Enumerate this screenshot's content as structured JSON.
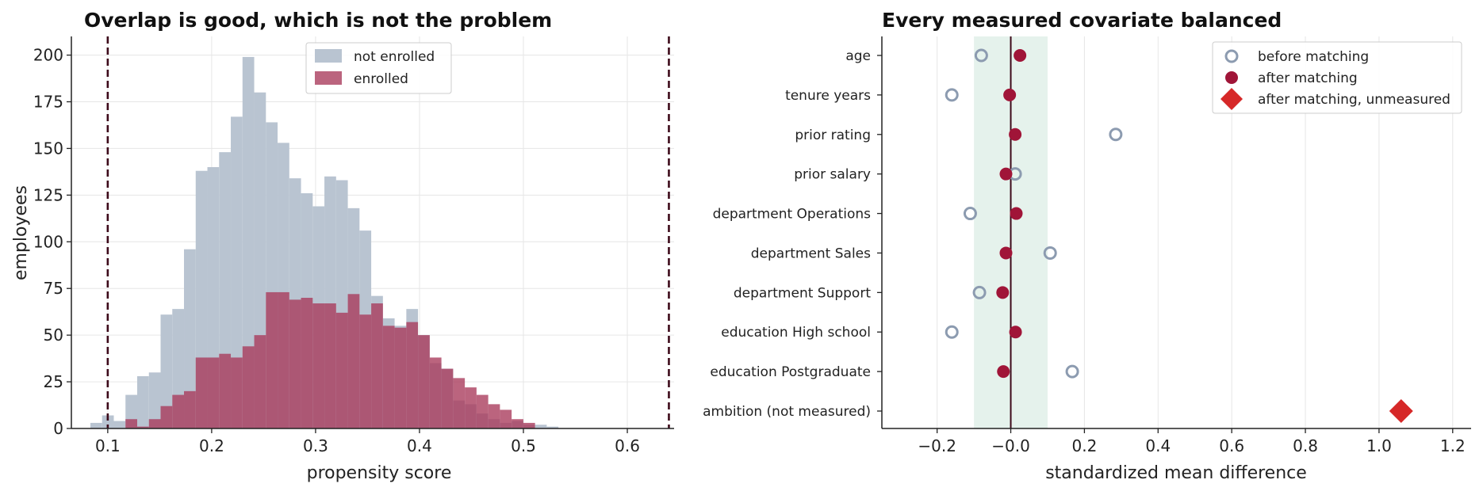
{
  "chart_data": [
    {
      "type": "histogram",
      "title": "Overlap is good, which is not the problem",
      "xlabel": "propensity score",
      "ylabel": "employees",
      "xlim": [
        0.065,
        0.645
      ],
      "ylim": [
        0,
        210
      ],
      "xticks": [
        0.1,
        0.2,
        0.3,
        0.4,
        0.5,
        0.6
      ],
      "yticks": [
        0,
        25,
        50,
        75,
        100,
        125,
        150,
        175,
        200
      ],
      "grid": true,
      "legend_position": "upper center",
      "reference_lines": [
        0.1,
        0.64
      ],
      "bin_start": 0.0833,
      "bin_width": 0.01126,
      "series": [
        {
          "name": "not enrolled",
          "color": "#b9c4d1",
          "values": [
            3,
            7,
            4,
            18,
            28,
            30,
            61,
            64,
            96,
            138,
            140,
            148,
            167,
            199,
            180,
            164,
            153,
            134,
            126,
            119,
            135,
            133,
            118,
            106,
            71,
            59,
            55,
            64,
            50,
            35,
            32,
            15,
            13,
            8,
            5,
            3,
            4,
            2,
            2,
            1
          ]
        },
        {
          "name": "enrolled",
          "color": "#a8385a",
          "values": [
            0,
            0,
            0,
            5,
            1,
            5,
            12,
            18,
            20,
            38,
            38,
            40,
            38,
            44,
            50,
            73,
            73,
            69,
            70,
            67,
            67,
            62,
            72,
            61,
            67,
            55,
            54,
            57,
            50,
            38,
            32,
            27,
            22,
            18,
            13,
            10,
            5,
            3,
            0,
            0
          ]
        }
      ]
    },
    {
      "type": "scatter",
      "title": "Every measured covariate balanced",
      "xlabel": "standardized mean difference",
      "ylabel": "",
      "xlim": [
        -0.35,
        1.25
      ],
      "xticks": [
        -0.2,
        0.0,
        0.2,
        0.4,
        0.6,
        0.8,
        1.0,
        1.2
      ],
      "xtick_labels": [
        "−0.2",
        "−0.0",
        "0.2",
        "0.4",
        "0.6",
        "0.8",
        "1.0",
        "1.2"
      ],
      "grid": true,
      "balance_band": [
        -0.1,
        0.1
      ],
      "legend_position": "upper right",
      "categories": [
        "age",
        "tenure years",
        "prior rating",
        "prior salary",
        "department Operations",
        "department Sales",
        "department Support",
        "education High school",
        "education Postgraduate",
        "ambition (not measured)"
      ],
      "series": [
        {
          "name": "before matching",
          "color": "#8c9bb0",
          "marker": "open-circle",
          "points": [
            {
              "category": "age",
              "x": -0.08
            },
            {
              "category": "tenure years",
              "x": -0.16
            },
            {
              "category": "prior rating",
              "x": 0.285
            },
            {
              "category": "prior salary",
              "x": 0.012
            },
            {
              "category": "department Operations",
              "x": -0.11
            },
            {
              "category": "department Sales",
              "x": 0.107
            },
            {
              "category": "department Support",
              "x": -0.085
            },
            {
              "category": "education High school",
              "x": -0.16
            },
            {
              "category": "education Postgraduate",
              "x": 0.167
            }
          ]
        },
        {
          "name": "after matching",
          "color": "#a01538",
          "marker": "filled-circle",
          "points": [
            {
              "category": "age",
              "x": 0.025
            },
            {
              "category": "tenure years",
              "x": -0.003
            },
            {
              "category": "prior rating",
              "x": 0.012
            },
            {
              "category": "prior salary",
              "x": -0.013
            },
            {
              "category": "department Operations",
              "x": 0.015
            },
            {
              "category": "department Sales",
              "x": -0.013
            },
            {
              "category": "department Support",
              "x": -0.022
            },
            {
              "category": "education High school",
              "x": 0.013
            },
            {
              "category": "education Postgraduate",
              "x": -0.02
            }
          ]
        },
        {
          "name": "after matching, unmeasured",
          "color": "#d62828",
          "marker": "diamond",
          "points": [
            {
              "category": "ambition (not measured)",
              "x": 1.06
            }
          ]
        }
      ]
    }
  ]
}
